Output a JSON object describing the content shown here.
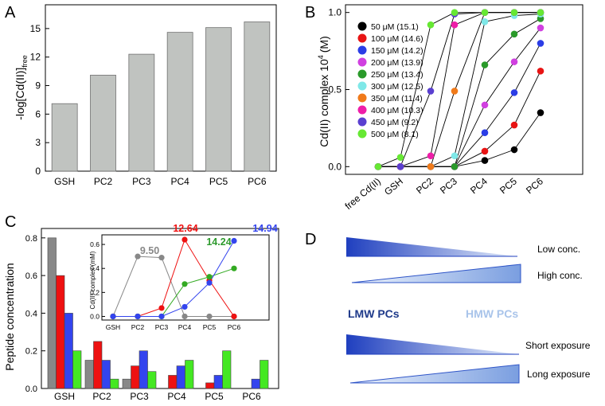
{
  "panel_labels": {
    "a": "A",
    "b": "B",
    "c": "C",
    "d": "D"
  },
  "colors": {
    "bar_gray": "#c0c3c0",
    "gray": "#888888",
    "red": "#ee1111",
    "blue": "#3344ee",
    "green": "#44cc22",
    "dark_green": "#2e9a2e",
    "wedge_dark": "#1f3fbf",
    "wedge_light": "#dbe6f7",
    "lmw_text": "#1f3a8a",
    "hmw_text": "#a9c4ea"
  },
  "chart_data": [
    {
      "id": "A",
      "type": "bar",
      "ylabel_main": "-log[Cd(II)]",
      "ylabel_sub": "free",
      "categories": [
        "GSH",
        "PC2",
        "PC3",
        "PC4",
        "PC5",
        "PC6"
      ],
      "values": [
        7.1,
        10.1,
        12.3,
        14.6,
        15.1,
        15.7
      ],
      "ylim": [
        0,
        17.5
      ],
      "yticks": [
        0,
        3,
        6,
        9,
        12,
        15
      ]
    },
    {
      "id": "B",
      "type": "line",
      "ylabel_main": "Cd(II) complex 10",
      "ylabel_sup": "4",
      "ylabel_unit": "(M)",
      "categories": [
        "free Cd(II)",
        "GSH",
        "PC2",
        "PC3",
        "PC4",
        "PC5",
        "PC6"
      ],
      "ylim": [
        -0.05,
        1.05
      ],
      "yticks": [
        "0.0",
        "0.5",
        "1.0"
      ],
      "series": [
        {
          "name": "50 μM (15.1)",
          "color": "#000000",
          "values": [
            0,
            0,
            0,
            0,
            0.04,
            0.11,
            0.35
          ]
        },
        {
          "name": "100 μM (14.6)",
          "color": "#e81414",
          "values": [
            0,
            0,
            0,
            0,
            0.1,
            0.27,
            0.62
          ]
        },
        {
          "name": "150 μM (14.2)",
          "color": "#2b3de6",
          "values": [
            0,
            0,
            0,
            0,
            0.22,
            0.48,
            0.8
          ]
        },
        {
          "name": "200 μM (13.9)",
          "color": "#d040e0",
          "values": [
            0,
            0,
            0,
            0,
            0.4,
            0.68,
            0.9
          ]
        },
        {
          "name": "250 μM (13.4)",
          "color": "#2a9a2a",
          "values": [
            0,
            0,
            0,
            0,
            0.66,
            0.86,
            0.96
          ]
        },
        {
          "name": "300 μM (12.5)",
          "color": "#7fe8e8",
          "values": [
            0,
            0,
            0,
            0.07,
            0.94,
            0.98,
            0.99
          ]
        },
        {
          "name": "350 μM (11.4)",
          "color": "#f07a1a",
          "values": [
            0,
            0,
            0,
            0.49,
            1.0,
            1.0,
            1.0
          ]
        },
        {
          "name": "400 μM (10.3)",
          "color": "#ee1ea8",
          "values": [
            0,
            0,
            0.07,
            0.92,
            1.0,
            1.0,
            1.0
          ]
        },
        {
          "name": "450 μM (9.2)",
          "color": "#5a3fd0",
          "values": [
            0,
            0,
            0.49,
            0.99,
            1.0,
            1.0,
            1.0
          ]
        },
        {
          "name": "500 μM (8.1)",
          "color": "#66e833",
          "values": [
            0,
            0.06,
            0.92,
            1.0,
            1.0,
            1.0,
            1.0
          ]
        }
      ]
    },
    {
      "id": "C",
      "type": "bar",
      "ylabel": "Peptide concentration",
      "categories": [
        "GSH",
        "PC2",
        "PC3",
        "PC4",
        "PC5",
        "PC6"
      ],
      "ylim": [
        0,
        0.85
      ],
      "yticks": [
        "0.0",
        "0.2",
        "0.4",
        "0.6",
        "0.8"
      ],
      "series": [
        {
          "name": "gray",
          "color": "#888888",
          "values": [
            0.8,
            0.15,
            0.05,
            0,
            0,
            0
          ]
        },
        {
          "name": "red",
          "color": "#ee1111",
          "values": [
            0.6,
            0.25,
            0.12,
            0.07,
            0.03,
            0
          ]
        },
        {
          "name": "blue",
          "color": "#3344ee",
          "values": [
            0.4,
            0.15,
            0.2,
            0.12,
            0.07,
            0.05
          ]
        },
        {
          "name": "green",
          "color": "#44e822",
          "values": [
            0.2,
            0.05,
            0.09,
            0.15,
            0.2,
            0.15
          ]
        }
      ],
      "inset": {
        "type": "line",
        "ylabel": "Cd(II) complex (mM)",
        "categories": [
          "GSH",
          "PC2",
          "PC3",
          "PC4",
          "PC5",
          "PC6"
        ],
        "ylim": [
          -0.03,
          0.68
        ],
        "yticks": [
          "0.0",
          "0.2",
          "0.4",
          "0.6"
        ],
        "series": [
          {
            "name": "9.50",
            "color": "#888888",
            "values": [
              0,
              0.5,
              0.49,
              0,
              0,
              0
            ]
          },
          {
            "name": "12.64",
            "color": "#ee1111",
            "values": [
              0,
              0,
              0.07,
              0.64,
              0.3,
              0
            ]
          },
          {
            "name": "14.24",
            "color": "#33aa22",
            "values": [
              0,
              0,
              0,
              0.27,
              0.33,
              0.4
            ]
          },
          {
            "name": "14.94",
            "color": "#3344ee",
            "values": [
              0,
              0,
              0,
              0.08,
              0.28,
              0.63
            ]
          }
        ]
      }
    }
  ],
  "panel_d": {
    "low_conc": "Low conc.",
    "high_conc": "High conc.",
    "lmw": "LMW PCs",
    "hmw": "HMW PCs",
    "short_exposure": "Short exposure",
    "long_exposure": "Long exposure"
  }
}
